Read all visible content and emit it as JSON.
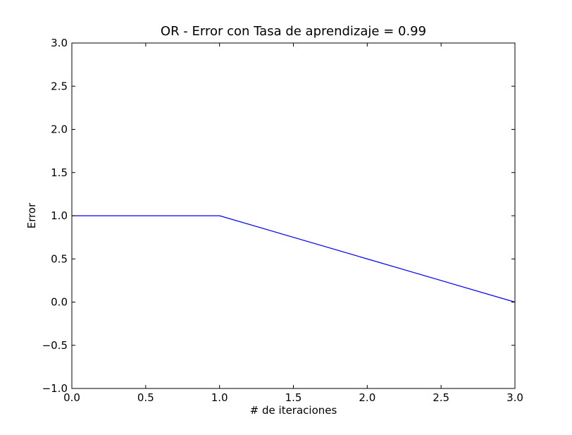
{
  "colors": {
    "background": "#ffffff",
    "axes": "#000000",
    "series": "#0000ff"
  },
  "chart_data": {
    "type": "line",
    "title": "OR - Error con Tasa de aprendizaje = 0.99",
    "xlabel": "# de iteraciones",
    "ylabel": "Error",
    "xlim": [
      0.0,
      3.0
    ],
    "ylim": [
      -1.0,
      3.0
    ],
    "grid": false,
    "x_ticks": [
      0.0,
      0.5,
      1.0,
      1.5,
      2.0,
      2.5,
      3.0
    ],
    "x_tick_labels": [
      "0.0",
      "0.5",
      "1.0",
      "1.5",
      "2.0",
      "2.5",
      "3.0"
    ],
    "y_ticks": [
      -1.0,
      -0.5,
      0.0,
      0.5,
      1.0,
      1.5,
      2.0,
      2.5,
      3.0
    ],
    "y_tick_labels": [
      "−1.0",
      "−0.5",
      "0.0",
      "0.5",
      "1.0",
      "1.5",
      "2.0",
      "2.5",
      "3.0"
    ],
    "series": [
      {
        "x": [
          0,
          1,
          2,
          3
        ],
        "values": [
          1.0,
          1.0,
          0.5,
          0.0
        ]
      }
    ]
  }
}
